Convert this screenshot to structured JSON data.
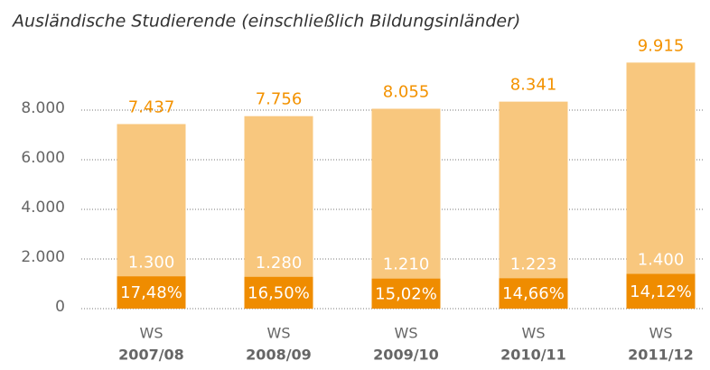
{
  "chart_data": {
    "type": "bar",
    "overlay": true,
    "title": "Ausländische Studierende (einschließlich Bildungsinländer)",
    "categories": [
      [
        "WS",
        "2007/08"
      ],
      [
        "WS",
        "2008/09"
      ],
      [
        "WS",
        "2009/10"
      ],
      [
        "WS",
        "2010/11"
      ],
      [
        "WS",
        "2011/12"
      ]
    ],
    "series": [
      {
        "color": "#f8c77e",
        "values": [
          7437,
          7756,
          8055,
          8341,
          9915
        ],
        "value_labels": [
          "7.437",
          "7.756",
          "8.055",
          "8.341",
          "9.915"
        ]
      },
      {
        "color": "#ef8c00",
        "values": [
          1300,
          1280,
          1210,
          1223,
          1400
        ],
        "value_labels": [
          "1.300",
          "1.280",
          "1.210",
          "1.223",
          "1.400"
        ],
        "share_labels": [
          "17,48%",
          "16,50%",
          "15,02%",
          "14,66%",
          "14,12%"
        ]
      }
    ],
    "ylim": [
      0,
      10000
    ],
    "yticks": [
      0,
      {
        "value": 2000,
        "label": "2.000"
      },
      {
        "value": 4000,
        "label": "4.000"
      },
      {
        "value": 6000,
        "label": "6.000"
      },
      {
        "value": 8000,
        "label": "8.000"
      }
    ],
    "grid": true
  }
}
